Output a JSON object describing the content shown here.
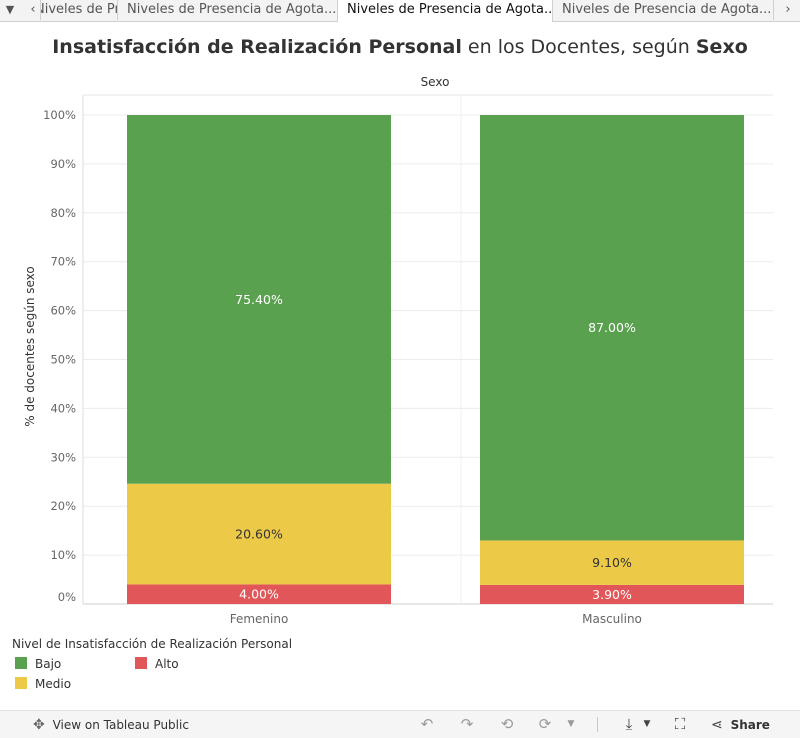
{
  "tabs": [
    {
      "label": "Niveles de Presencia de Agotamiento",
      "state": "clipped"
    },
    {
      "label": "Niveles de Presencia de Agota...",
      "state": "normal"
    },
    {
      "label": "Niveles de Presencia de Agota...",
      "state": "active"
    },
    {
      "label": "Niveles de Presencia de Agota...",
      "state": "normal"
    }
  ],
  "tab_controls": {
    "menu_icon": "caret-down-icon",
    "prev_icon": "chevron-left-icon",
    "next_icon": "chevron-right-icon"
  },
  "title": {
    "part1": "Insatisfacción de Realización Personal",
    "part2": " en los Docentes, según ",
    "part3": "Sexo"
  },
  "chart_data": {
    "type": "bar",
    "stacked": true,
    "header": "Sexo",
    "categories": [
      "Femenino",
      "Masculino"
    ],
    "ylabel": "% de docentes según sexo",
    "ylim": [
      0,
      100
    ],
    "yticks": [
      "0%",
      "10%",
      "20%",
      "30%",
      "40%",
      "50%",
      "60%",
      "70%",
      "80%",
      "90%",
      "100%"
    ],
    "grid": true,
    "series": [
      {
        "name": "Alto",
        "color": "#e15759",
        "values": [
          4.0,
          3.9
        ],
        "labels": [
          "4.00%",
          "3.90%"
        ],
        "label_color": "#ffffff"
      },
      {
        "name": "Medio",
        "color": "#edc948",
        "values": [
          20.6,
          9.1
        ],
        "labels": [
          "20.60%",
          "9.10%"
        ],
        "label_color": "#333333"
      },
      {
        "name": "Bajo",
        "color": "#59a14f",
        "values": [
          75.4,
          87.0
        ],
        "labels": [
          "75.40%",
          "87.00%"
        ],
        "label_color": "#ffffff"
      }
    ]
  },
  "legend": {
    "title": "Nivel de Insatisfacción de Realización Personal",
    "items": [
      {
        "name": "Bajo",
        "color": "#59a14f"
      },
      {
        "name": "Alto",
        "color": "#e15759"
      },
      {
        "name": "Medio",
        "color": "#edc948"
      }
    ]
  },
  "toolbar": {
    "view_label": "View on Tableau Public",
    "share_label": "Share",
    "icons": [
      "tableau-logo-icon",
      "undo-icon",
      "redo-icon",
      "revert-icon",
      "refresh-icon",
      "pause-icon",
      "download-icon",
      "fullscreen-icon",
      "share-icon"
    ]
  }
}
